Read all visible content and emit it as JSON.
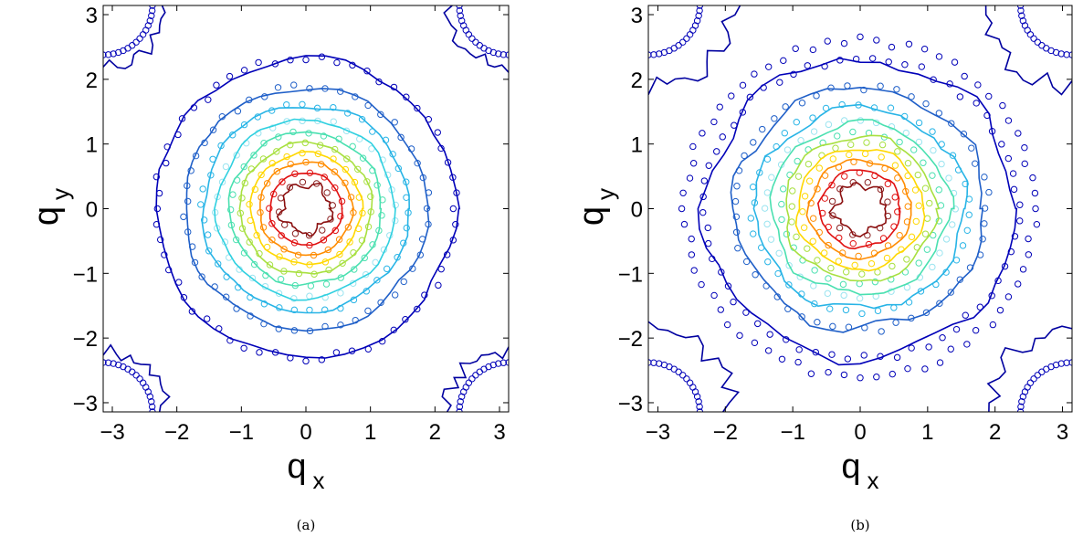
{
  "chart_data": [
    {
      "type": "contour",
      "caption": "(a)",
      "xlabel": "q",
      "xlabel_sub": "x",
      "ylabel": "q",
      "ylabel_sub": "y",
      "xlim": [
        -3.1416,
        3.1416
      ],
      "ylim": [
        -3.1416,
        3.1416
      ],
      "xticks": [
        -3,
        -2,
        -1,
        0,
        1,
        2,
        3
      ],
      "yticks": [
        -3,
        -2,
        -1,
        0,
        1,
        2,
        3
      ],
      "xtick_labels": [
        "−3",
        "−2",
        "−1",
        "0",
        "1",
        "2",
        "3"
      ],
      "ytick_labels": [
        "−3",
        "−2",
        "−1",
        "0",
        "1",
        "2",
        "3"
      ],
      "grid": false,
      "contour_radii": [
        2.32,
        1.88,
        1.6,
        1.38,
        1.18,
        1.02,
        0.86,
        0.72,
        0.56
      ],
      "contour_colors": [
        "#0000b8",
        "#1f5fc8",
        "#28b4e6",
        "#30d0e0",
        "#4ae0b0",
        "#a8e040",
        "#ffd700",
        "#ff8c00",
        "#e01010"
      ],
      "center_contour_color": "#8b1010",
      "marker_ring_radii": [
        2.32,
        1.88,
        1.6,
        1.38,
        1.18,
        1.02,
        0.86,
        0.72,
        0.56,
        0.42
      ],
      "marker_colors": [
        "#0000b8",
        "#1f5fc8",
        "#28b4e6",
        "#9ae4f0",
        "#4ae0b0",
        "#a8e040",
        "#ffd700",
        "#ff8c00",
        "#e01010",
        "#8b2020"
      ],
      "corner_contour_color": "#0000a0"
    },
    {
      "type": "contour",
      "caption": "(b)",
      "xlabel": "q",
      "xlabel_sub": "x",
      "ylabel": "q",
      "ylabel_sub": "y",
      "xlim": [
        -3.1416,
        3.1416
      ],
      "ylim": [
        -3.1416,
        3.1416
      ],
      "xticks": [
        -3,
        -2,
        -1,
        0,
        1,
        2,
        3
      ],
      "yticks": [
        -3,
        -2,
        -1,
        0,
        1,
        2,
        3
      ],
      "xtick_labels": [
        "−3",
        "−2",
        "−1",
        "0",
        "1",
        "2",
        "3"
      ],
      "ytick_labels": [
        "−3",
        "−2",
        "−1",
        "0",
        "1",
        "2",
        "3"
      ],
      "grid": false,
      "contour_radii": [
        2.3,
        1.86,
        1.56,
        1.32,
        1.12,
        0.94,
        0.76,
        0.6
      ],
      "contour_colors": [
        "#0000b8",
        "#1f5fc8",
        "#28b4e6",
        "#4ae0b0",
        "#a8e040",
        "#ffd700",
        "#ff8c00",
        "#e01010"
      ],
      "center_contour_color": "#8b1010",
      "marker_ring_radii": [
        2.6,
        2.32,
        1.88,
        1.6,
        1.38,
        1.18,
        1.02,
        0.86,
        0.72,
        0.56,
        0.42
      ],
      "marker_colors": [
        "#0000b8",
        "#0000b8",
        "#1f5fc8",
        "#28b4e6",
        "#9ae4f0",
        "#4ae0b0",
        "#a8e040",
        "#ffd700",
        "#ff8c00",
        "#e01010",
        "#8b2020"
      ],
      "corner_contour_color": "#0000a0"
    }
  ]
}
